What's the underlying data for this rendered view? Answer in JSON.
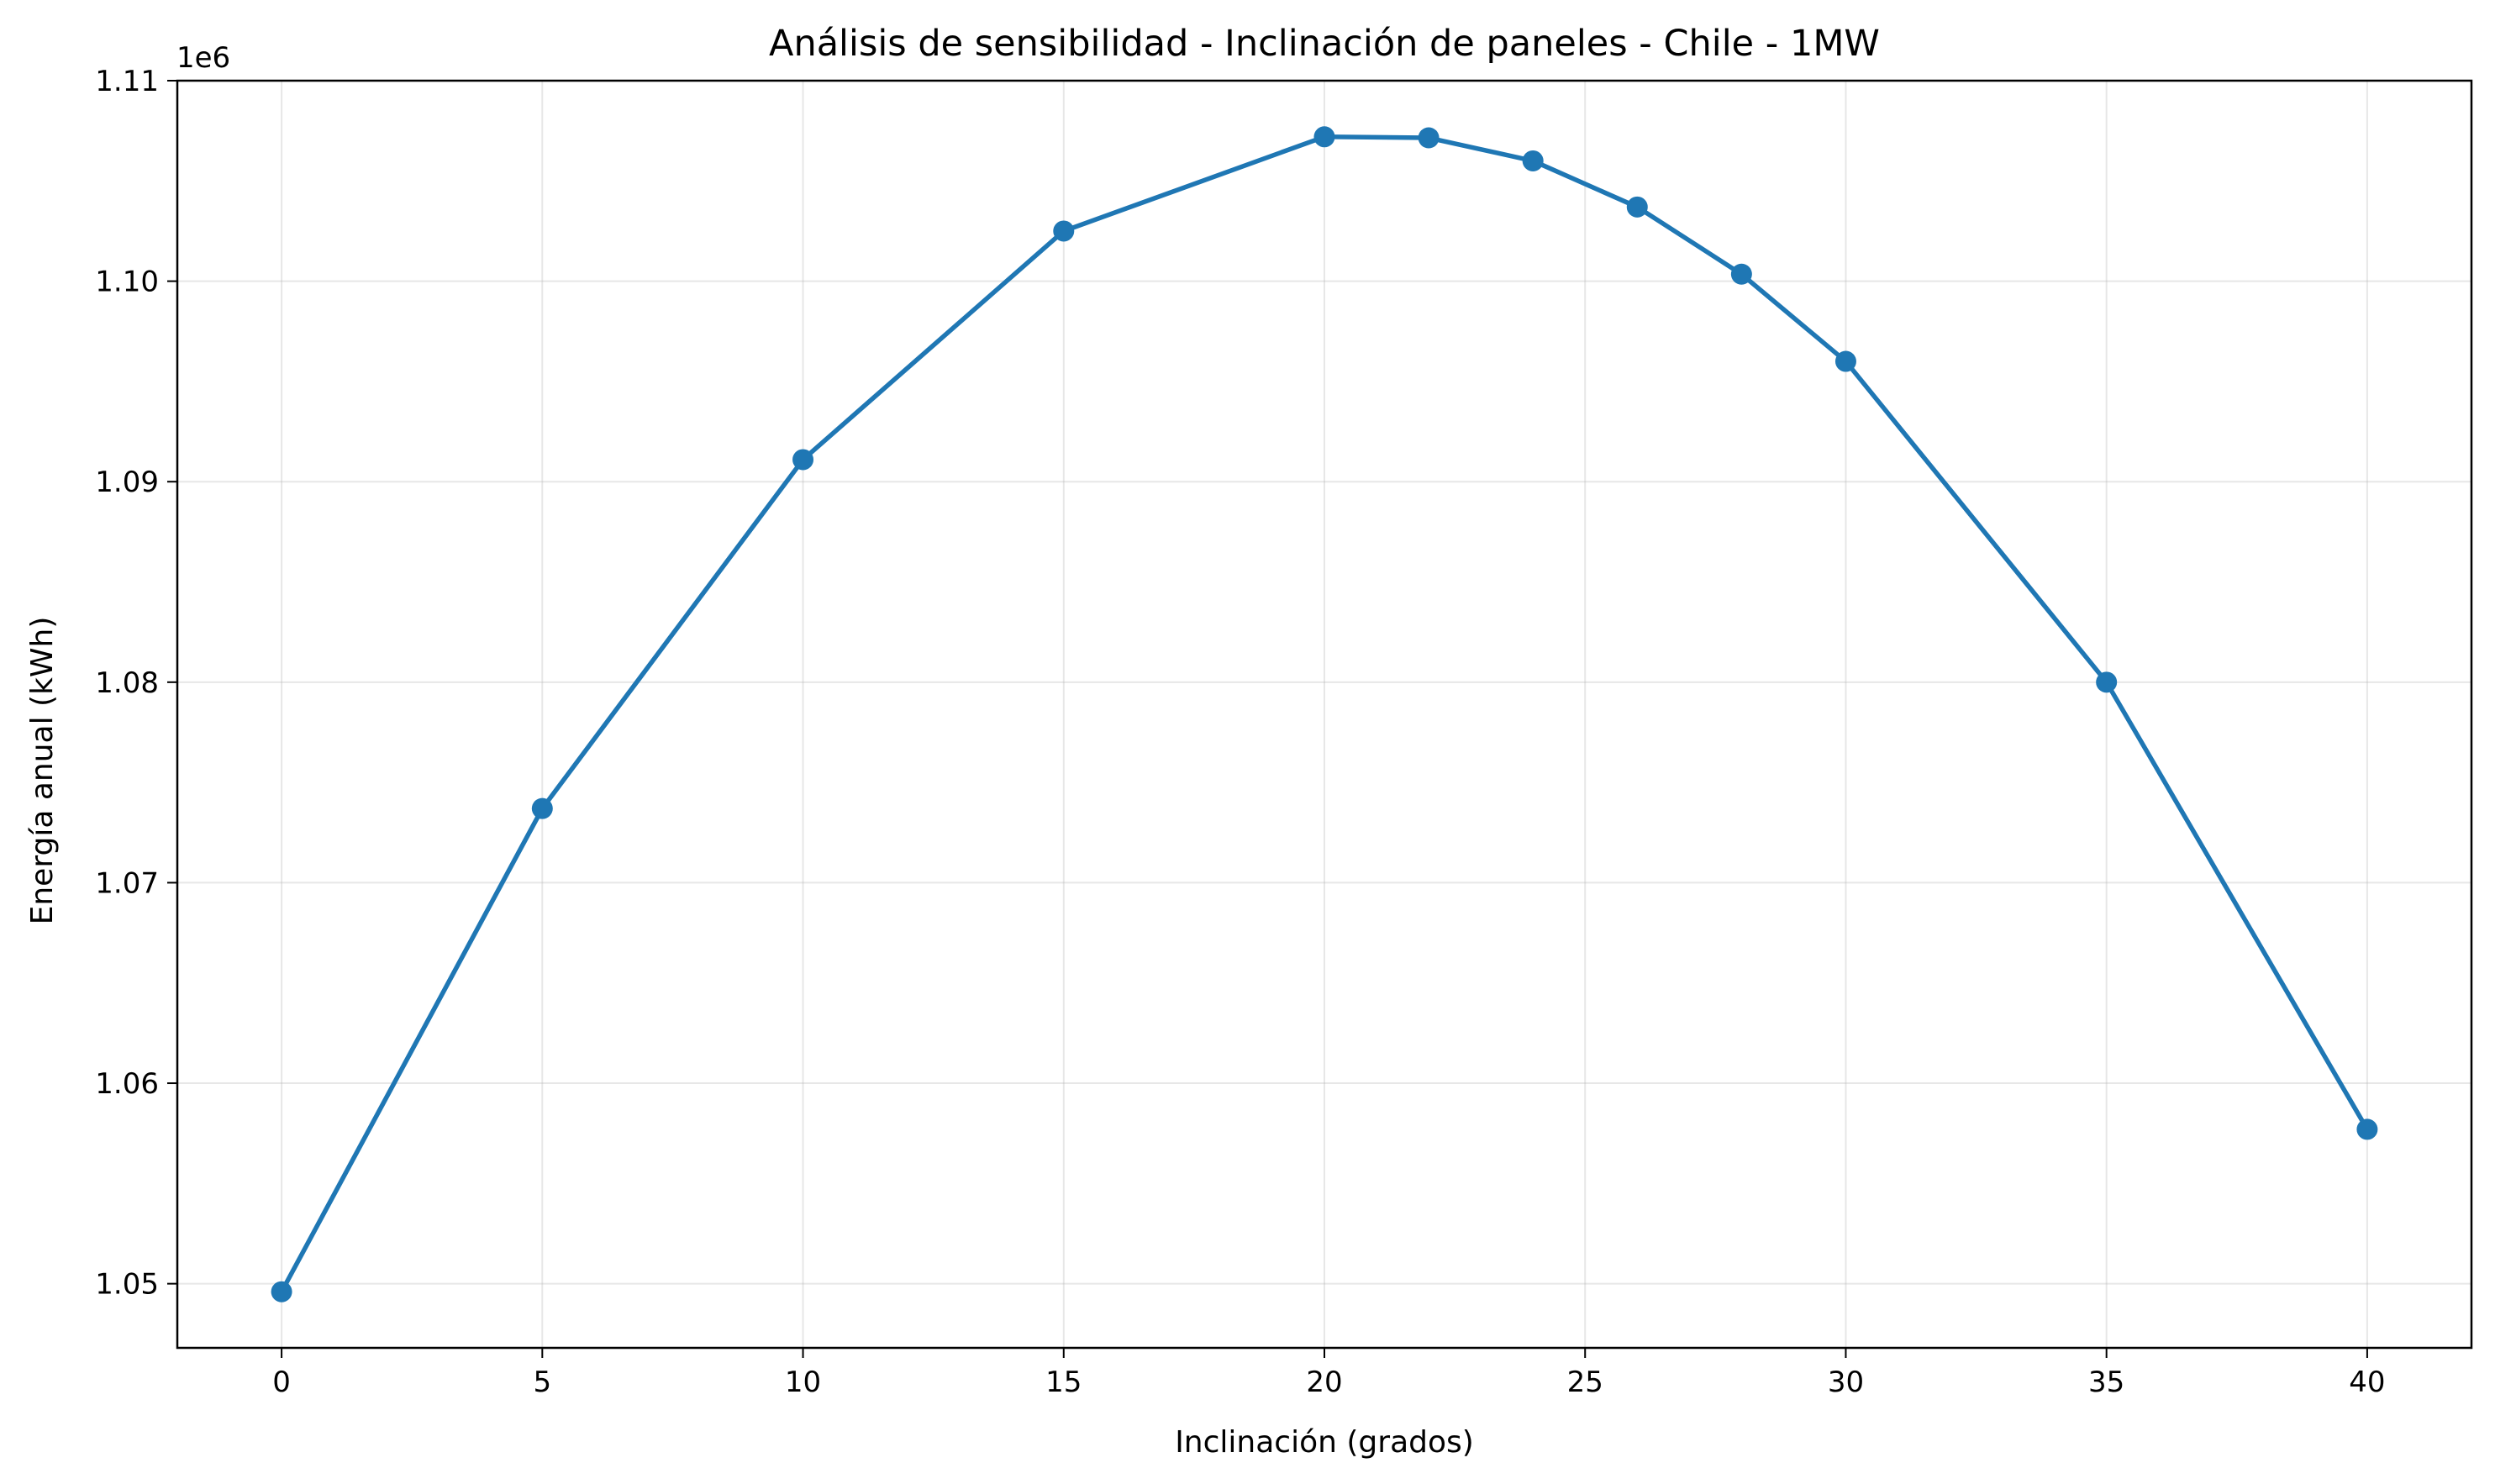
{
  "chart_data": {
    "type": "line",
    "title": "Análisis de sensibilidad - Inclinación de paneles - Chile - 1MW",
    "xlabel": "Inclinación (grados)",
    "ylabel": "Energía anual (kWh)",
    "y_offset_label": "1e6",
    "xlim": [
      -2,
      42
    ],
    "ylim": [
      1046800,
      1110000
    ],
    "x_ticks": [
      0,
      5,
      10,
      15,
      20,
      25,
      30,
      35,
      40
    ],
    "x_tick_labels": [
      "0",
      "5",
      "10",
      "15",
      "20",
      "25",
      "30",
      "35",
      "40"
    ],
    "y_ticks": [
      1050000,
      1060000,
      1070000,
      1080000,
      1090000,
      1100000,
      1110000
    ],
    "y_tick_labels": [
      "1.05",
      "1.06",
      "1.07",
      "1.08",
      "1.09",
      "1.10",
      "1.11"
    ],
    "grid": true,
    "series": [
      {
        "x": [
          0,
          5,
          10,
          15,
          20,
          22,
          24,
          26,
          28,
          30,
          35,
          40
        ],
        "y": [
          1049600,
          1073700,
          1091100,
          1102500,
          1107200,
          1107150,
          1106000,
          1103700,
          1100350,
          1096000,
          1080000,
          1057700
        ],
        "color": "#1f77b4",
        "marker": "circle"
      }
    ]
  }
}
